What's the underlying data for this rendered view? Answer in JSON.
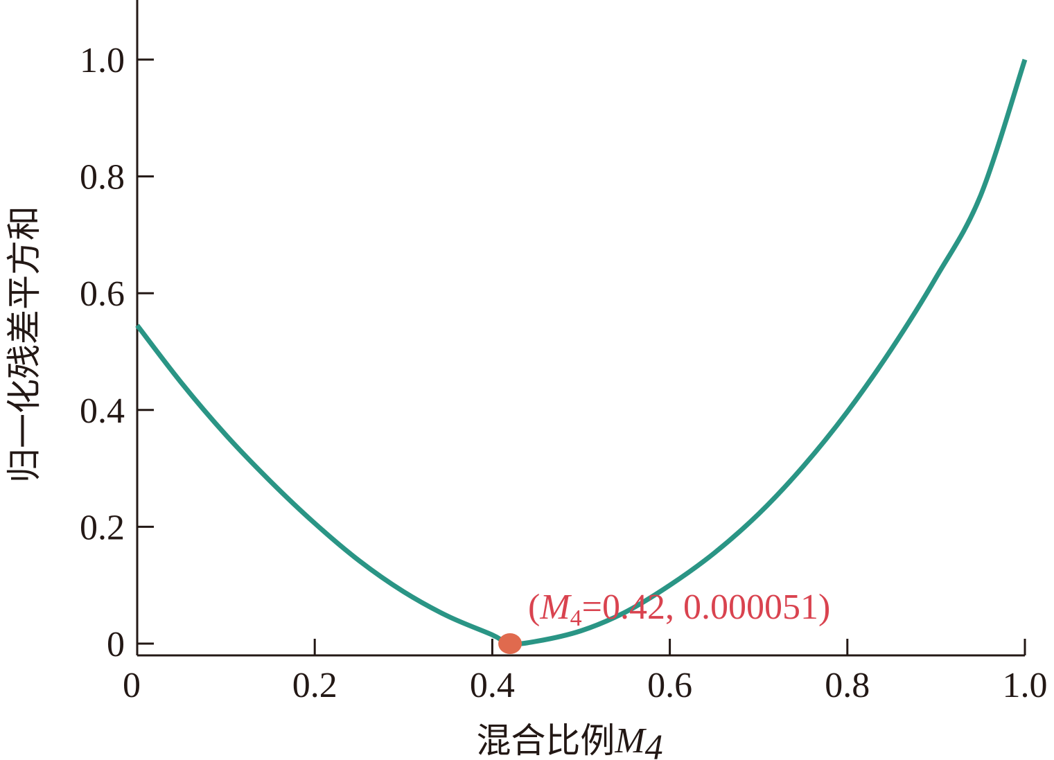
{
  "chart_data": {
    "type": "line",
    "xlabel": "混合比例",
    "xlabel_var": "M",
    "xlabel_sub": "4",
    "ylabel": "归一化残差平方和",
    "xlim": [
      0,
      1.0
    ],
    "ylim": [
      0,
      1.1
    ],
    "x_ticks": [
      0,
      0.2,
      0.4,
      0.6,
      0.8,
      1.0
    ],
    "x_tick_labels": [
      "0",
      "0.2",
      "0.4",
      "0.6",
      "0.8",
      "1.0"
    ],
    "y_ticks": [
      0,
      0.2,
      0.4,
      0.6,
      0.8,
      1.0
    ],
    "y_tick_labels": [
      "0",
      "0.2",
      "0.4",
      "0.6",
      "0.8",
      "1.0"
    ],
    "grid": false,
    "legend": "none",
    "series": [
      {
        "color": "#2a9585",
        "x": [
          0,
          0.05,
          0.1,
          0.15,
          0.2,
          0.25,
          0.3,
          0.35,
          0.4,
          0.42,
          0.45,
          0.5,
          0.55,
          0.6,
          0.65,
          0.7,
          0.75,
          0.8,
          0.85,
          0.9,
          0.95,
          1.0
        ],
        "y": [
          0.545,
          0.446,
          0.357,
          0.278,
          0.206,
          0.142,
          0.089,
          0.047,
          0.015,
          0.0001,
          0.004,
          0.022,
          0.054,
          0.1,
          0.155,
          0.222,
          0.303,
          0.397,
          0.505,
          0.627,
          0.767,
          1.0
        ]
      }
    ],
    "marker": {
      "x": 0.42,
      "y": 5.1e-05,
      "color": "#e06a4e"
    },
    "annotation": {
      "prefix": "(",
      "var": "M",
      "sub": "4",
      "rest": "=0.42, 0.000051)"
    }
  }
}
